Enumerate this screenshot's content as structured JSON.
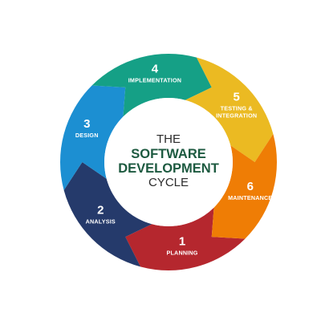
{
  "center": {
    "line1": "THE",
    "line2": "SOFTWARE",
    "line3": "DEVELOPMENT",
    "line4": "CYCLE"
  },
  "stages": [
    {
      "number": "1",
      "label": "PLANNING",
      "label2": "",
      "color": "#b5272e"
    },
    {
      "number": "2",
      "label": "ANALYSIS",
      "label2": "",
      "color": "#253a6b"
    },
    {
      "number": "3",
      "label": "DESIGN",
      "label2": "",
      "color": "#1c8fd2"
    },
    {
      "number": "4",
      "label": "IMPLEMENTATION",
      "label2": "",
      "color": "#15a086"
    },
    {
      "number": "5",
      "label": "TESTING &",
      "label2": "INTEGRATION",
      "color": "#ebba22"
    },
    {
      "number": "6",
      "label": "MAINTENANCE",
      "label2": "",
      "color": "#ef7d05"
    }
  ]
}
